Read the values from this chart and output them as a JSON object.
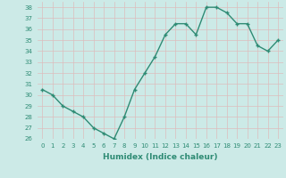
{
  "x": [
    0,
    1,
    2,
    3,
    4,
    5,
    6,
    7,
    8,
    9,
    10,
    11,
    12,
    13,
    14,
    15,
    16,
    17,
    18,
    19,
    20,
    21,
    22,
    23
  ],
  "y": [
    30.5,
    30.0,
    29.0,
    28.5,
    28.0,
    27.0,
    26.5,
    26.0,
    28.0,
    30.5,
    32.0,
    33.5,
    35.5,
    36.5,
    36.5,
    35.5,
    38.0,
    38.0,
    37.5,
    36.5,
    36.5,
    34.5,
    34.0,
    35.0
  ],
  "line_color": "#2e8b74",
  "marker": "+",
  "markersize": 3,
  "linewidth": 1.0,
  "markeredgewidth": 1.0,
  "xlabel": "Humidex (Indice chaleur)",
  "xlim": [
    -0.5,
    23.5
  ],
  "ylim": [
    26,
    38.5
  ],
  "yticks": [
    26,
    27,
    28,
    29,
    30,
    31,
    32,
    33,
    34,
    35,
    36,
    37,
    38
  ],
  "xticks": [
    0,
    1,
    2,
    3,
    4,
    5,
    6,
    7,
    8,
    9,
    10,
    11,
    12,
    13,
    14,
    15,
    16,
    17,
    18,
    19,
    20,
    21,
    22,
    23
  ],
  "xtick_labels": [
    "0",
    "1",
    "2",
    "3",
    "4",
    "5",
    "6",
    "7",
    "8",
    "9",
    "10",
    "11",
    "12",
    "13",
    "14",
    "15",
    "16",
    "17",
    "18",
    "19",
    "20",
    "21",
    "22",
    "23"
  ],
  "bg_color": "#cceae7",
  "grid_color": "#ddbdbd",
  "tick_fontsize": 5,
  "xlabel_fontsize": 6.5,
  "tick_color": "#2e8b74"
}
